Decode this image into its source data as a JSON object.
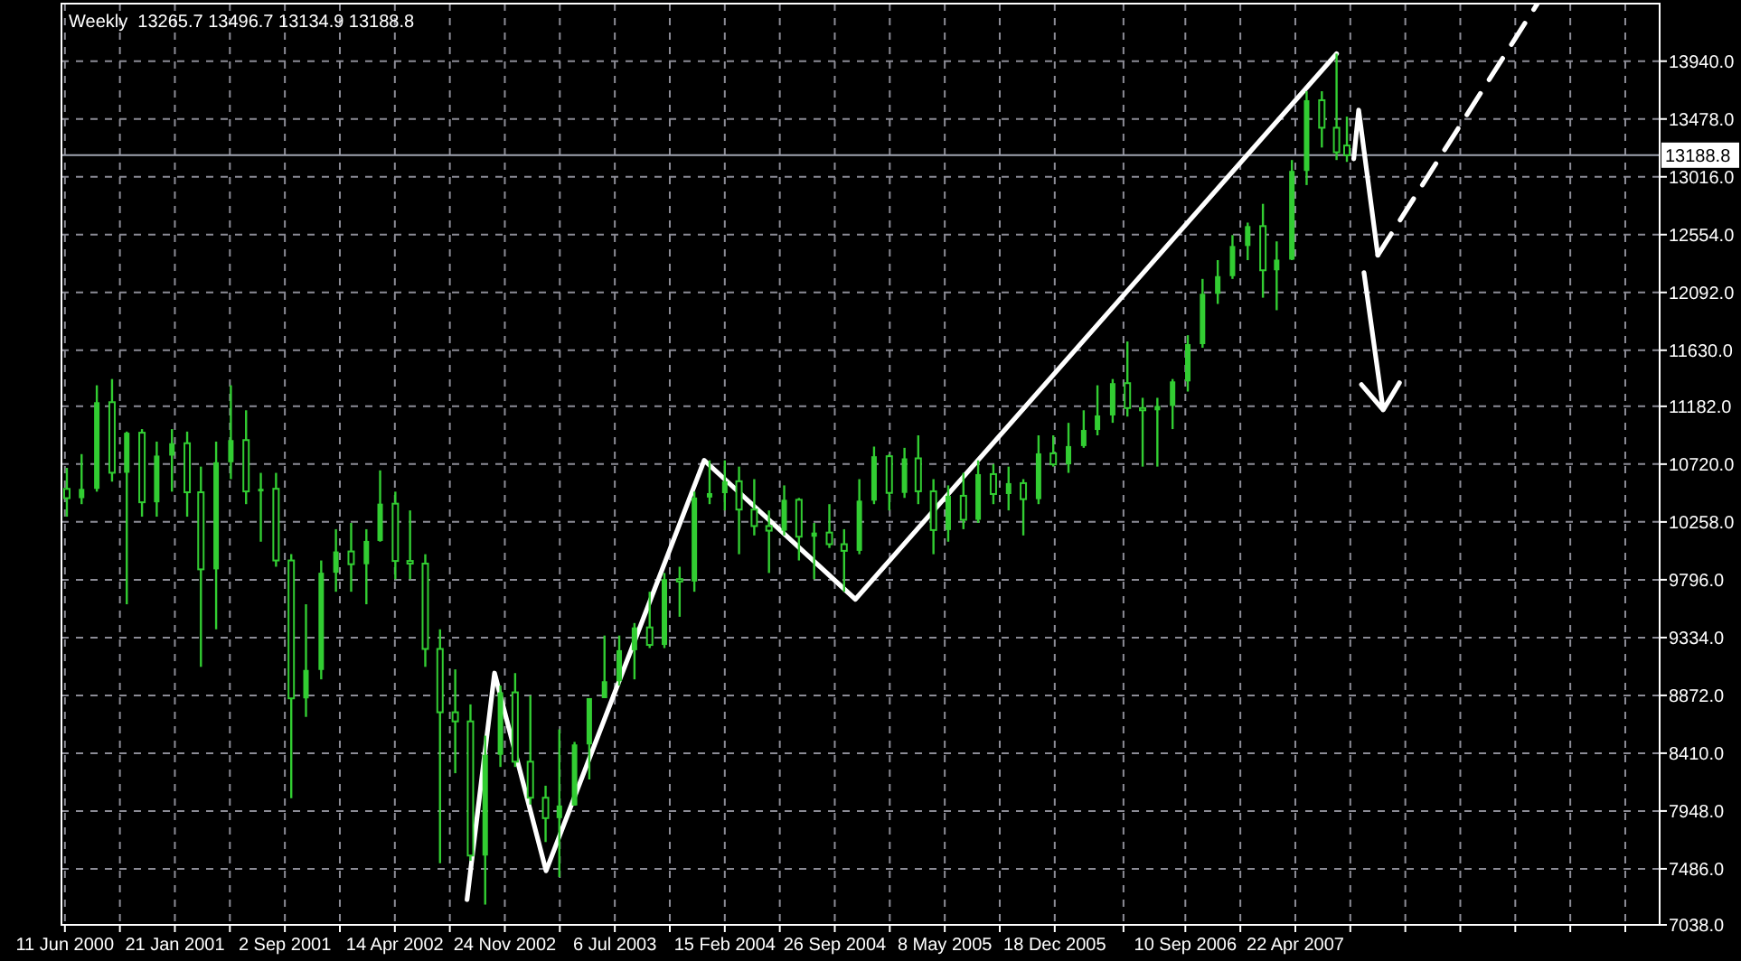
{
  "chart_data": {
    "type": "candlestick",
    "title": "Weekly  13265.7 13496.7 13134.9 13188.8",
    "color": "#32cd32",
    "grid": true,
    "xlim": [
      "2000-06-04",
      "2009-05-03"
    ],
    "xticks": [
      {
        "value": "2000-06-11",
        "label": "11 Jun 2000"
      },
      {
        "value": "2000-10-01",
        "label": null
      },
      {
        "value": "2001-01-21",
        "label": "21 Jan 2001"
      },
      {
        "value": "2001-05-13",
        "label": null
      },
      {
        "value": "2001-09-02",
        "label": "2 Sep 2001"
      },
      {
        "value": "2001-12-23",
        "label": null
      },
      {
        "value": "2002-04-14",
        "label": "14 Apr 2002"
      },
      {
        "value": "2002-08-04",
        "label": null
      },
      {
        "value": "2002-11-24",
        "label": "24 Nov 2002"
      },
      {
        "value": "2003-03-16",
        "label": null
      },
      {
        "value": "2003-07-06",
        "label": "6 Jul 2003"
      },
      {
        "value": "2003-10-26",
        "label": null
      },
      {
        "value": "2004-02-15",
        "label": "15 Feb 2004"
      },
      {
        "value": "2004-06-06",
        "label": null
      },
      {
        "value": "2004-09-26",
        "label": "26 Sep 2004"
      },
      {
        "value": "2005-01-16",
        "label": null
      },
      {
        "value": "2005-05-08",
        "label": "8 May 2005"
      },
      {
        "value": "2005-08-28",
        "label": null
      },
      {
        "value": "2005-12-18",
        "label": "18 Dec 2005"
      },
      {
        "value": "2006-05-07",
        "label": null
      },
      {
        "value": "2006-09-10",
        "label": "10 Sep 2006"
      },
      {
        "value": "2006-12-31",
        "label": null
      },
      {
        "value": "2007-04-22",
        "label": "22 Apr 2007"
      },
      {
        "value": "2007-08-12",
        "label": null
      },
      {
        "value": "2007-12-02",
        "label": null
      },
      {
        "value": "2008-03-23",
        "label": null
      },
      {
        "value": "2008-07-13",
        "label": null
      },
      {
        "value": "2008-11-02",
        "label": null
      },
      {
        "value": "2009-02-22",
        "label": null
      }
    ],
    "ylim": [
      7038,
      14400
    ],
    "yticks": [
      {
        "value": 7038,
        "label": "7038.0"
      },
      {
        "value": 7486,
        "label": "7486.0"
      },
      {
        "value": 7948,
        "label": "7948.0"
      },
      {
        "value": 8410,
        "label": "8410.0"
      },
      {
        "value": 8872,
        "label": "8872.0"
      },
      {
        "value": 9334,
        "label": "9334.0"
      },
      {
        "value": 9796,
        "label": "9796.0"
      },
      {
        "value": 10258,
        "label": "10258.0"
      },
      {
        "value": 10720,
        "label": "10720.0"
      },
      {
        "value": 11182,
        "label": "11182.0"
      },
      {
        "value": 11630,
        "label": "11630.0"
      },
      {
        "value": 12092,
        "label": "12092.0"
      },
      {
        "value": 12554,
        "label": "12554.0"
      },
      {
        "value": 13016,
        "label": "13016.0"
      },
      {
        "value": 13478,
        "label": "13478.0"
      },
      {
        "value": 13940,
        "label": "13940.0"
      }
    ],
    "ref_lines": [
      {
        "axis": "y",
        "value": 13188.8,
        "label": "13188.8",
        "color": "#a0a4b0"
      }
    ],
    "x": [
      "2000-06-15",
      "2000-07-15",
      "2000-08-15",
      "2000-09-15",
      "2000-10-15",
      "2000-11-15",
      "2000-12-15",
      "2001-01-15",
      "2001-02-15",
      "2001-03-15",
      "2001-04-15",
      "2001-05-15",
      "2001-06-15",
      "2001-07-15",
      "2001-08-15",
      "2001-09-15",
      "2001-10-15",
      "2001-11-15",
      "2001-12-15",
      "2002-01-15",
      "2002-02-15",
      "2002-03-15",
      "2002-04-15",
      "2002-05-15",
      "2002-06-15",
      "2002-07-15",
      "2002-08-15",
      "2002-09-15",
      "2002-10-15",
      "2002-11-15",
      "2002-12-15",
      "2003-01-15",
      "2003-02-15",
      "2003-03-15",
      "2003-04-15",
      "2003-05-15",
      "2003-06-15",
      "2003-07-15",
      "2003-08-15",
      "2003-09-15",
      "2003-10-15",
      "2003-11-15",
      "2003-12-15",
      "2004-01-15",
      "2004-02-15",
      "2004-03-15",
      "2004-04-15",
      "2004-05-15",
      "2004-06-15",
      "2004-07-15",
      "2004-08-15",
      "2004-09-15",
      "2004-10-15",
      "2004-11-15",
      "2004-12-15",
      "2005-01-15",
      "2005-02-15",
      "2005-03-15",
      "2005-04-15",
      "2005-05-15",
      "2005-06-15",
      "2005-07-15",
      "2005-08-15",
      "2005-09-15",
      "2005-10-15",
      "2005-11-15",
      "2005-12-15",
      "2006-01-15",
      "2006-02-15",
      "2006-03-15",
      "2006-04-15",
      "2006-05-15",
      "2006-06-15",
      "2006-07-15",
      "2006-08-15",
      "2006-09-15",
      "2006-10-15",
      "2006-11-15",
      "2006-12-15",
      "2007-01-15",
      "2007-02-15",
      "2007-03-15",
      "2007-04-15",
      "2007-05-15",
      "2007-06-15",
      "2007-07-15",
      "2007-08-05"
    ],
    "ohlc": [
      [
        10522,
        10690,
        10300,
        10448
      ],
      [
        10448,
        10800,
        10400,
        10522
      ],
      [
        10522,
        11350,
        10500,
        11215
      ],
      [
        11215,
        11400,
        10580,
        10651
      ],
      [
        10651,
        10980,
        9600,
        10971
      ],
      [
        10971,
        11000,
        10300,
        10415
      ],
      [
        10415,
        10900,
        10300,
        10788
      ],
      [
        10788,
        11000,
        10500,
        10887
      ],
      [
        10887,
        10980,
        10300,
        10495
      ],
      [
        10495,
        10700,
        9100,
        9879
      ],
      [
        9879,
        10900,
        9400,
        10735
      ],
      [
        10735,
        11350,
        10600,
        10912
      ],
      [
        10912,
        11150,
        10400,
        10502
      ],
      [
        10502,
        10650,
        10100,
        10523
      ],
      [
        10523,
        10650,
        9900,
        9950
      ],
      [
        9950,
        10000,
        8050,
        8848
      ],
      [
        8848,
        9600,
        8700,
        9075
      ],
      [
        9075,
        9950,
        9000,
        9852
      ],
      [
        9852,
        10200,
        9700,
        10022
      ],
      [
        10022,
        10250,
        9700,
        9920
      ],
      [
        9920,
        10200,
        9600,
        10106
      ],
      [
        10106,
        10670,
        10100,
        10404
      ],
      [
        10404,
        10500,
        9800,
        9946
      ],
      [
        9946,
        10350,
        9800,
        9925
      ],
      [
        9925,
        10000,
        9100,
        9243
      ],
      [
        9243,
        9400,
        7530,
        8737
      ],
      [
        8737,
        9080,
        8250,
        8664
      ],
      [
        8664,
        8800,
        7550,
        7592
      ],
      [
        7592,
        8550,
        7200,
        8397
      ],
      [
        8397,
        8950,
        8300,
        8896
      ],
      [
        8896,
        9050,
        8300,
        8342
      ],
      [
        8342,
        8870,
        8000,
        8054
      ],
      [
        8054,
        8150,
        7700,
        7891
      ],
      [
        7891,
        8600,
        7420,
        7992
      ],
      [
        7992,
        8500,
        7990,
        8480
      ],
      [
        8480,
        8850,
        8200,
        8850
      ],
      [
        8850,
        9350,
        8850,
        8985
      ],
      [
        8985,
        9350,
        8950,
        9233
      ],
      [
        9233,
        9450,
        9000,
        9415
      ],
      [
        9415,
        9700,
        9250,
        9275
      ],
      [
        9275,
        9850,
        9250,
        9801
      ],
      [
        9801,
        9900,
        9500,
        9782
      ],
      [
        9782,
        10500,
        9700,
        10453
      ],
      [
        10453,
        10750,
        10400,
        10488
      ],
      [
        10488,
        10750,
        10350,
        10583
      ],
      [
        10583,
        10700,
        10000,
        10357
      ],
      [
        10357,
        10600,
        10150,
        10225
      ],
      [
        10225,
        10350,
        9850,
        10188
      ],
      [
        10188,
        10550,
        10150,
        10435
      ],
      [
        10435,
        10450,
        9950,
        10140
      ],
      [
        10140,
        10250,
        9800,
        10173
      ],
      [
        10173,
        10400,
        10050,
        10080
      ],
      [
        10080,
        10200,
        9700,
        10027
      ],
      [
        10027,
        10600,
        10000,
        10428
      ],
      [
        10428,
        10860,
        10400,
        10783
      ],
      [
        10783,
        10800,
        10350,
        10490
      ],
      [
        10490,
        10850,
        10450,
        10766
      ],
      [
        10766,
        10950,
        10400,
        10503
      ],
      [
        10503,
        10600,
        10000,
        10193
      ],
      [
        10193,
        10550,
        10100,
        10467
      ],
      [
        10467,
        10650,
        10200,
        10275
      ],
      [
        10275,
        10750,
        10250,
        10640
      ],
      [
        10640,
        10720,
        10400,
        10481
      ],
      [
        10481,
        10700,
        10350,
        10568
      ],
      [
        10568,
        10600,
        10150,
        10440
      ],
      [
        10440,
        10950,
        10400,
        10806
      ],
      [
        10806,
        10950,
        10700,
        10718
      ],
      [
        10718,
        11050,
        10650,
        10864
      ],
      [
        10864,
        11150,
        10850,
        10993
      ],
      [
        10993,
        11350,
        10950,
        11109
      ],
      [
        11109,
        11400,
        11050,
        11367
      ],
      [
        11367,
        11700,
        11100,
        11168
      ],
      [
        11168,
        11250,
        10700,
        11150
      ],
      [
        11150,
        11250,
        10700,
        11185
      ],
      [
        11185,
        11400,
        11000,
        11381
      ],
      [
        11381,
        11750,
        11300,
        11679
      ],
      [
        11679,
        12200,
        11650,
        12081
      ],
      [
        12081,
        12350,
        12000,
        12222
      ],
      [
        12222,
        12550,
        12200,
        12463
      ],
      [
        12463,
        12650,
        12350,
        12622
      ],
      [
        12622,
        12800,
        12050,
        12269
      ],
      [
        12269,
        12500,
        11950,
        12354
      ],
      [
        12354,
        13150,
        12350,
        13063
      ],
      [
        13063,
        13700,
        12950,
        13628
      ],
      [
        13628,
        13700,
        13250,
        13408
      ],
      [
        13408,
        14000,
        13150,
        13212
      ],
      [
        13266,
        13497,
        13135,
        13189
      ]
    ],
    "series": [
      {
        "type": "line",
        "color": "#ffffff",
        "line_style": "solid",
        "x": [
          "2002-09-08",
          "2002-11-03",
          "2003-02-16",
          "2004-01-04",
          "2004-11-07",
          "2007-07-15"
        ],
        "values": [
          7240,
          9050,
          7470,
          10750,
          9640,
          14000
        ]
      },
      {
        "type": "line",
        "color": "#ffffff",
        "line_style": "solid",
        "x": [
          "2007-08-19",
          "2007-08-29",
          "2007-10-07"
        ],
        "values": [
          13160,
          13550,
          12390
        ]
      },
      {
        "type": "line",
        "color": "#ffffff",
        "line_style": "dashed",
        "x": [
          "2007-10-07",
          "2008-08-27"
        ],
        "values": [
          12390,
          14400
        ]
      }
    ]
  }
}
